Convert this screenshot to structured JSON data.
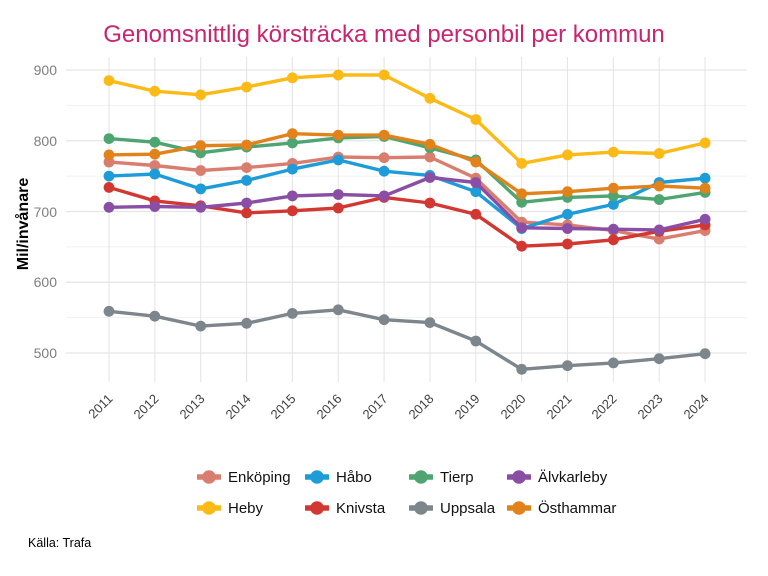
{
  "source": "Källa: Trafa",
  "colors": {
    "title_text": "#C9246F",
    "y_tick_text": "#7F7F7F",
    "x_tick_text": "#404040",
    "grid_major": "#E5E5E5",
    "grid_minor": "#F1F1F1"
  },
  "chart_data": {
    "type": "line",
    "title": "Genomsnittlig körsträcka med personbil per kommun",
    "xlabel": "",
    "ylabel": "Mil/invånare",
    "x": [
      2011,
      2012,
      2013,
      2014,
      2015,
      2016,
      2017,
      2018,
      2019,
      2020,
      2021,
      2022,
      2023,
      2024
    ],
    "ylim": [
      460,
      910
    ],
    "yticks": [
      500,
      600,
      700,
      800,
      900
    ],
    "yticks_minor": [
      550,
      650,
      750,
      850
    ],
    "grid": true,
    "legend_position": "bottom",
    "legend_order": [
      "Enköping",
      "Håbo",
      "Tierp",
      "Älvkarleby",
      "Heby",
      "Knivsta",
      "Uppsala",
      "Östhammar"
    ],
    "series": [
      {
        "name": "Enköping",
        "color": "#D97E6F",
        "values": [
          770,
          765,
          758,
          762,
          768,
          777,
          776,
          777,
          747,
          685,
          681,
          673,
          661,
          673
        ]
      },
      {
        "name": "Heby",
        "color": "#FBBA15",
        "values": [
          885,
          870,
          865,
          876,
          889,
          893,
          893,
          860,
          830,
          768,
          780,
          784,
          782,
          797
        ]
      },
      {
        "name": "Håbo",
        "color": "#1E9CD8",
        "values": [
          750,
          753,
          732,
          744,
          760,
          773,
          757,
          751,
          728,
          676,
          696,
          710,
          741,
          747
        ]
      },
      {
        "name": "Knivsta",
        "color": "#D23731",
        "values": [
          734,
          715,
          708,
          698,
          701,
          705,
          720,
          712,
          696,
          651,
          654,
          660,
          672,
          681
        ]
      },
      {
        "name": "Tierp",
        "color": "#4FA572",
        "values": [
          803,
          798,
          783,
          791,
          797,
          804,
          806,
          790,
          773,
          713,
          720,
          722,
          717,
          727
        ]
      },
      {
        "name": "Uppsala",
        "color": "#7D868C",
        "values": [
          559,
          552,
          538,
          542,
          556,
          561,
          547,
          543,
          517,
          477,
          482,
          486,
          492,
          499
        ]
      },
      {
        "name": "Älvkarleby",
        "color": "#8A4FA5",
        "values": [
          706,
          707,
          706,
          712,
          722,
          724,
          722,
          748,
          741,
          677,
          676,
          675,
          674,
          689
        ]
      },
      {
        "name": "Östhammar",
        "color": "#E2821A",
        "values": [
          780,
          781,
          793,
          794,
          810,
          808,
          808,
          795,
          770,
          725,
          728,
          733,
          736,
          733
        ]
      }
    ]
  }
}
